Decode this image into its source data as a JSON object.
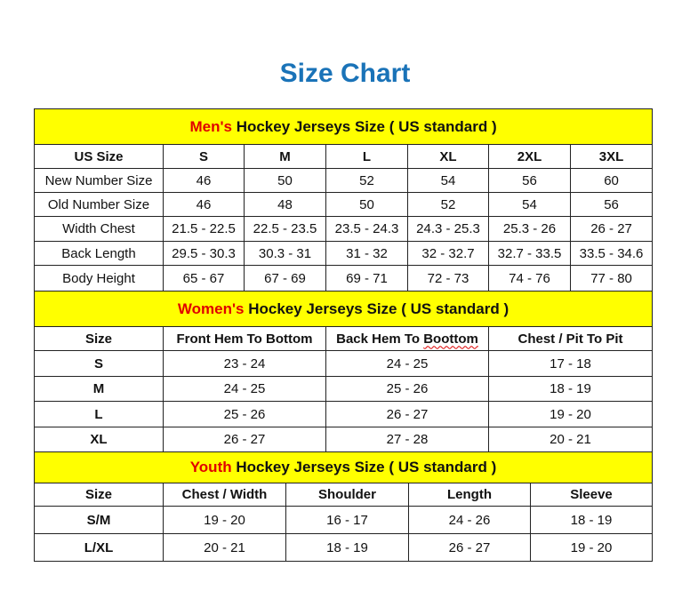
{
  "title": "Size Chart",
  "colors": {
    "title": "#1a73b8",
    "banner_bg": "#ffff00",
    "accent_text": "#e00000"
  },
  "sections": [
    {
      "id": "men",
      "banner_accent": "Men's",
      "banner_rest": " Hockey Jerseys Size ( US standard )",
      "headers": [
        "US Size",
        "S",
        "M",
        "L",
        "XL",
        "2XL",
        "3XL"
      ],
      "rows": [
        [
          "New Number Size",
          "46",
          "50",
          "52",
          "54",
          "56",
          "60"
        ],
        [
          "Old Number Size",
          "46",
          "48",
          "50",
          "52",
          "54",
          "56"
        ],
        [
          "Width Chest",
          "21.5 - 22.5",
          "22.5 - 23.5",
          "23.5 - 24.3",
          "24.3 - 25.3",
          "25.3 - 26",
          "26 - 27"
        ],
        [
          "Back Length",
          "29.5 - 30.3",
          "30.3 - 31",
          "31 - 32",
          "32 - 32.7",
          "32.7 - 33.5",
          "33.5 - 34.6"
        ],
        [
          "Body Height",
          "65 - 67",
          "67 - 69",
          "69 - 71",
          "72 - 73",
          "74 - 76",
          "77 - 80"
        ]
      ]
    },
    {
      "id": "women",
      "banner_accent": "Women's",
      "banner_rest": " Hockey Jerseys Size ( US standard )",
      "headers": [
        "Size",
        "Front Hem To Bottom",
        "Back Hem To Boottom",
        "Chest / Pit To Pit"
      ],
      "rows": [
        [
          "S",
          "23 - 24",
          "24 - 25",
          "17 - 18"
        ],
        [
          "M",
          "24 - 25",
          "25 - 26",
          "18 - 19"
        ],
        [
          "L",
          "25 - 26",
          "26 - 27",
          "19 - 20"
        ],
        [
          "XL",
          "26 - 27",
          "27 - 28",
          "20 - 21"
        ]
      ]
    },
    {
      "id": "youth",
      "banner_accent": "Youth",
      "banner_rest": " Hockey Jerseys Size ( US standard )",
      "headers": [
        "Size",
        "Chest / Width",
        "Shoulder",
        "Length",
        "Sleeve"
      ],
      "rows": [
        [
          "S/M",
          "19 - 20",
          "16 - 17",
          "24 - 26",
          "18 - 19"
        ],
        [
          "L/XL",
          "20 - 21",
          "18 - 19",
          "26 - 27",
          "19 - 20"
        ]
      ]
    }
  ]
}
